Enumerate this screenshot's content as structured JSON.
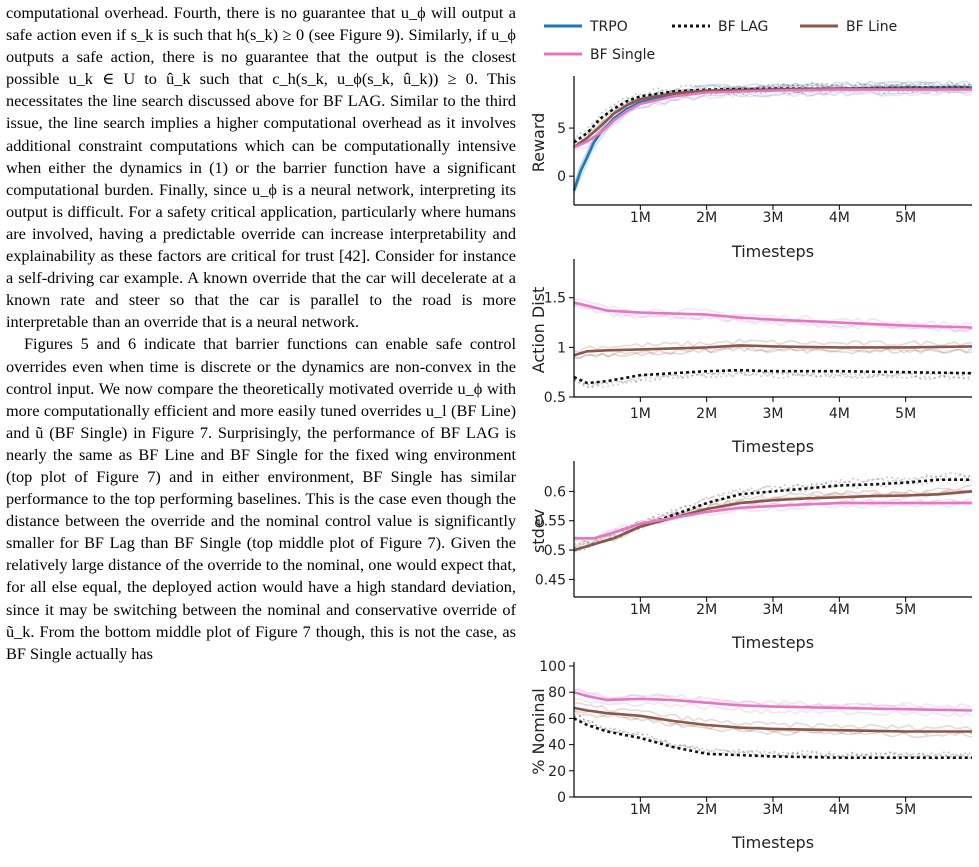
{
  "text": {
    "p1": "computational overhead. Fourth, there is no guarantee that u_ϕ will output a safe action even if s_k is such that h(s_k) ≥ 0 (see Figure 9). Similarly, if u_ϕ outputs a safe action, there is no guarantee that the output is the closest possible u_k ∈ U to û_k such that c_h(s_k, u_ϕ(s_k, û_k)) ≥ 0. This necessitates the line search discussed above for BF LAG. Similar to the third issue, the line search implies a higher computational overhead as it involves additional constraint computations which can be computationally intensive when either the dynamics in (1) or the barrier function have a significant computational burden. Finally, since u_ϕ is a neural network, interpreting its output is difficult. For a safety critical application, particularly where humans are involved, having a predictable override can increase interpretability and explainability as these factors are critical for trust [42]. Consider for instance a self-driving car example. A known override that the car will decelerate at a known rate and steer so that the car is parallel to the road is more interpretable than an override that is a neural network.",
    "p2": "Figures 5 and 6 indicate that barrier functions can enable safe control overrides even when time is discrete or the dynamics are non-convex in the control input. We now compare the theoretically motivated override u_ϕ with more computationally efficient and more easily tuned overrides u_l (BF Line) and ũ (BF Single) in Figure 7. Surprisingly, the performance of BF LAG is nearly the same as BF Line and BF Single for the fixed wing environment (top plot of Figure 7) and in either environment, BF Single has similar performance to the top performing baselines. This is the case even though the distance between the override and the nominal control value is significantly smaller for BF Lag than BF Single (top middle plot of Figure 7). Given the relatively large distance of the override to the nominal, one would expect that, for all else equal, the deployed action would have a high standard deviation, since it may be switching between the nominal and conservative override of ũ_k. From the bottom middle plot of Figure 7 though, this is not the case, as BF Single actually has"
  },
  "legend": [
    "TRPO",
    "BF LAG",
    "BF Line",
    "BF Single"
  ],
  "colors": {
    "TRPO": "#1f77b4",
    "BF LAG": "#111111",
    "BF Line": "#8c564b",
    "BF Single": "#e377c2"
  },
  "chart_data": [
    {
      "type": "line",
      "ylabel": "Reward",
      "xlabel": "Timesteps",
      "xlim": [
        0,
        6000000
      ],
      "ylim": [
        -3,
        10
      ],
      "xticks": [
        1000000,
        2000000,
        3000000,
        4000000,
        5000000
      ],
      "xticklabels": [
        "1M",
        "2M",
        "3M",
        "4M",
        "5M"
      ],
      "yticks": [
        0,
        5
      ],
      "yticklabels": [
        "0",
        "5"
      ],
      "series": [
        {
          "name": "TRPO",
          "x": [
            0,
            100000,
            200000,
            300000,
            400000,
            600000,
            800000,
            1000000,
            1500000,
            2000000,
            3000000,
            4000000,
            5000000,
            6000000
          ],
          "y": [
            -1.5,
            0.5,
            2,
            3.5,
            4.5,
            6,
            7,
            7.7,
            8.4,
            8.8,
            9.0,
            9.1,
            9.2,
            9.2
          ]
        },
        {
          "name": "BF LAG",
          "x": [
            0,
            200000,
            400000,
            600000,
            800000,
            1000000,
            1500000,
            2000000,
            3000000,
            4000000,
            5000000,
            6000000
          ],
          "y": [
            3.5,
            4.5,
            6.0,
            7.0,
            7.8,
            8.3,
            8.8,
            9.0,
            9.1,
            9.1,
            9.2,
            9.2
          ]
        },
        {
          "name": "BF Line",
          "x": [
            0,
            200000,
            400000,
            600000,
            800000,
            1000000,
            1500000,
            2000000,
            3000000,
            4000000,
            5000000,
            6000000
          ],
          "y": [
            3.0,
            4.0,
            5.2,
            6.5,
            7.4,
            8.0,
            8.6,
            8.9,
            9.0,
            9.1,
            9.1,
            9.1
          ]
        },
        {
          "name": "BF Single",
          "x": [
            0,
            200000,
            400000,
            600000,
            800000,
            1000000,
            1500000,
            2000000,
            3000000,
            4000000,
            5000000,
            6000000
          ],
          "y": [
            3.0,
            3.6,
            4.5,
            5.8,
            6.8,
            7.5,
            8.3,
            8.7,
            8.9,
            9.0,
            9.0,
            9.0
          ]
        }
      ]
    },
    {
      "type": "line",
      "ylabel": "Action Dist",
      "xlabel": "Timesteps",
      "xlim": [
        0,
        6000000
      ],
      "ylim": [
        0.5,
        1.85
      ],
      "xticks": [
        1000000,
        2000000,
        3000000,
        4000000,
        5000000
      ],
      "xticklabels": [
        "1M",
        "2M",
        "3M",
        "4M",
        "5M"
      ],
      "yticks": [
        0.5,
        1,
        1.5
      ],
      "yticklabels": [
        "0.5",
        "1",
        "1.5"
      ],
      "series": [
        {
          "name": "BF Single",
          "x": [
            0,
            200000,
            500000,
            1000000,
            1500000,
            2000000,
            2500000,
            3000000,
            4000000,
            5000000,
            6000000
          ],
          "y": [
            1.45,
            1.42,
            1.37,
            1.35,
            1.34,
            1.33,
            1.3,
            1.28,
            1.25,
            1.22,
            1.2
          ]
        },
        {
          "name": "BF Line",
          "x": [
            0,
            200000,
            500000,
            1000000,
            1500000,
            2000000,
            2500000,
            3000000,
            4000000,
            5000000,
            6000000
          ],
          "y": [
            0.92,
            0.96,
            0.97,
            0.98,
            0.99,
            1.0,
            1.02,
            1.01,
            1.0,
            1.0,
            1.01
          ]
        },
        {
          "name": "BF LAG",
          "x": [
            0,
            200000,
            500000,
            1000000,
            1500000,
            2000000,
            2500000,
            3000000,
            4000000,
            5000000,
            6000000
          ],
          "y": [
            0.7,
            0.64,
            0.66,
            0.72,
            0.74,
            0.76,
            0.77,
            0.76,
            0.76,
            0.75,
            0.74
          ]
        }
      ]
    },
    {
      "type": "line",
      "ylabel": "stdev",
      "xlabel": "Timesteps",
      "xlim": [
        0,
        6000000
      ],
      "ylim": [
        0.42,
        0.645
      ],
      "xticks": [
        1000000,
        2000000,
        3000000,
        4000000,
        5000000
      ],
      "xticklabels": [
        "1M",
        "2M",
        "3M",
        "4M",
        "5M"
      ],
      "yticks": [
        0.45,
        0.5,
        0.55,
        0.6
      ],
      "yticklabels": [
        "0.45",
        "0.5",
        "0.55",
        "0.6"
      ],
      "series": [
        {
          "name": "BF LAG",
          "x": [
            0,
            300000,
            600000,
            1000000,
            1500000,
            2000000,
            2500000,
            3000000,
            3500000,
            4000000,
            4500000,
            5000000,
            5500000,
            6000000
          ],
          "y": [
            0.5,
            0.51,
            0.52,
            0.54,
            0.56,
            0.58,
            0.595,
            0.6,
            0.605,
            0.61,
            0.612,
            0.615,
            0.62,
            0.62
          ]
        },
        {
          "name": "BF Line",
          "x": [
            0,
            300000,
            600000,
            1000000,
            1500000,
            2000000,
            2500000,
            3000000,
            3500000,
            4000000,
            4500000,
            5000000,
            5500000,
            6000000
          ],
          "y": [
            0.5,
            0.51,
            0.52,
            0.54,
            0.555,
            0.57,
            0.58,
            0.585,
            0.588,
            0.59,
            0.592,
            0.593,
            0.595,
            0.6
          ]
        },
        {
          "name": "BF Single",
          "x": [
            0,
            300000,
            600000,
            1000000,
            1500000,
            2000000,
            2500000,
            3000000,
            3500000,
            4000000,
            4500000,
            5000000,
            5500000,
            6000000
          ],
          "y": [
            0.52,
            0.52,
            0.53,
            0.545,
            0.555,
            0.565,
            0.572,
            0.575,
            0.578,
            0.58,
            0.58,
            0.58,
            0.58,
            0.58
          ]
        }
      ]
    },
    {
      "type": "line",
      "ylabel": "% Nominal",
      "xlabel": "Timesteps",
      "xlim": [
        0,
        6000000
      ],
      "ylim": [
        0,
        100
      ],
      "xticks": [
        1000000,
        2000000,
        3000000,
        4000000,
        5000000
      ],
      "xticklabels": [
        "1M",
        "2M",
        "3M",
        "4M",
        "5M"
      ],
      "yticks": [
        0,
        20,
        40,
        60,
        80,
        100
      ],
      "yticklabels": [
        "0",
        "20",
        "40",
        "60",
        "80",
        "100"
      ],
      "series": [
        {
          "name": "BF Single",
          "x": [
            0,
            200000,
            500000,
            1000000,
            1500000,
            2000000,
            2500000,
            3000000,
            4000000,
            5000000,
            6000000
          ],
          "y": [
            80,
            77,
            74,
            75,
            74,
            72,
            70,
            69,
            68,
            67,
            66
          ]
        },
        {
          "name": "BF Line",
          "x": [
            0,
            200000,
            500000,
            1000000,
            1500000,
            2000000,
            2500000,
            3000000,
            4000000,
            5000000,
            6000000
          ],
          "y": [
            68,
            66,
            64,
            62,
            58,
            55,
            53,
            52,
            51,
            50,
            50
          ]
        },
        {
          "name": "BF LAG",
          "x": [
            0,
            200000,
            500000,
            1000000,
            1500000,
            2000000,
            2500000,
            3000000,
            4000000,
            5000000,
            6000000
          ],
          "y": [
            60,
            55,
            50,
            45,
            38,
            33,
            32,
            31,
            30,
            30,
            30
          ]
        }
      ]
    }
  ]
}
